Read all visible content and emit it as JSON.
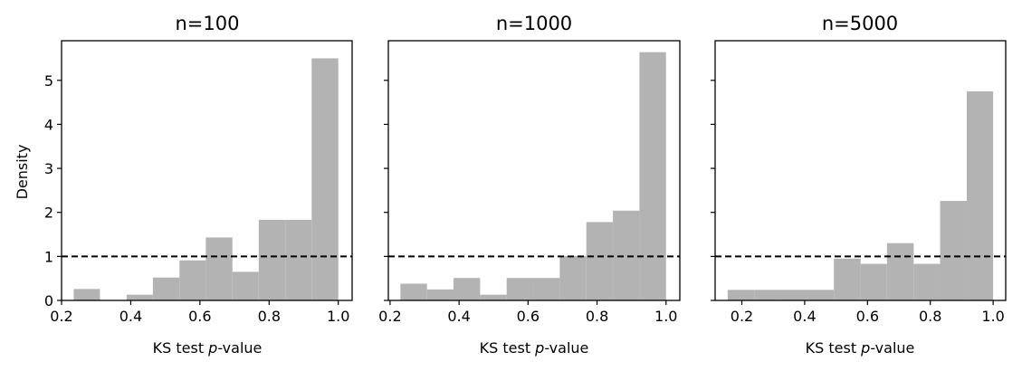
{
  "chart_data": [
    {
      "type": "histogram",
      "title": "n=100",
      "xlabel_prefix": "KS test ",
      "xlabel_italic": "p",
      "xlabel_suffix": "-value",
      "ylabel": "Density",
      "xlim": [
        0.2,
        1.04
      ],
      "ylim": [
        0,
        5.9
      ],
      "xticks": [
        "0.2",
        "0.4",
        "0.6",
        "0.8",
        "1.0"
      ],
      "yticks": [
        "0",
        "1",
        "2",
        "3",
        "4",
        "5"
      ],
      "bar_color": "#b3b3b3",
      "reference_line": {
        "y": 1.0,
        "style": "dashed",
        "color": "#000000"
      },
      "bins": [
        {
          "x0": 0.235,
          "x1": 0.311,
          "density": 0.26
        },
        {
          "x0": 0.311,
          "x1": 0.388,
          "density": 0.0
        },
        {
          "x0": 0.388,
          "x1": 0.464,
          "density": 0.13
        },
        {
          "x0": 0.464,
          "x1": 0.541,
          "density": 0.52
        },
        {
          "x0": 0.541,
          "x1": 0.617,
          "density": 0.91
        },
        {
          "x0": 0.617,
          "x1": 0.694,
          "density": 1.43
        },
        {
          "x0": 0.694,
          "x1": 0.77,
          "density": 0.65
        },
        {
          "x0": 0.77,
          "x1": 0.847,
          "density": 1.83
        },
        {
          "x0": 0.847,
          "x1": 0.923,
          "density": 1.83
        },
        {
          "x0": 0.923,
          "x1": 1.0,
          "density": 5.5
        }
      ]
    },
    {
      "type": "histogram",
      "title": "n=1000",
      "xlabel_prefix": "KS test ",
      "xlabel_italic": "p",
      "xlabel_suffix": "-value",
      "ylabel": "",
      "xlim": [
        0.195,
        1.04
      ],
      "ylim": [
        0,
        5.9
      ],
      "xticks": [
        "0.2",
        "0.4",
        "0.6",
        "0.8",
        "1.0"
      ],
      "yticks": [
        "",
        "",
        "",
        "",
        "",
        ""
      ],
      "bar_color": "#b3b3b3",
      "reference_line": {
        "y": 1.0,
        "style": "dashed",
        "color": "#000000"
      },
      "bins": [
        {
          "x0": 0.23,
          "x1": 0.307,
          "density": 0.38
        },
        {
          "x0": 0.307,
          "x1": 0.384,
          "density": 0.25
        },
        {
          "x0": 0.384,
          "x1": 0.461,
          "density": 0.51
        },
        {
          "x0": 0.461,
          "x1": 0.538,
          "density": 0.13
        },
        {
          "x0": 0.538,
          "x1": 0.615,
          "density": 0.51
        },
        {
          "x0": 0.615,
          "x1": 0.692,
          "density": 0.51
        },
        {
          "x0": 0.692,
          "x1": 0.769,
          "density": 1.01
        },
        {
          "x0": 0.769,
          "x1": 0.846,
          "density": 1.78
        },
        {
          "x0": 0.846,
          "x1": 0.923,
          "density": 2.04
        },
        {
          "x0": 0.923,
          "x1": 1.0,
          "density": 5.64
        }
      ]
    },
    {
      "type": "histogram",
      "title": "n=5000",
      "xlabel_prefix": "KS test ",
      "xlabel_italic": "p",
      "xlabel_suffix": "-value",
      "ylabel": "",
      "xlim": [
        0.115,
        1.04
      ],
      "ylim": [
        0,
        5.9
      ],
      "xticks": [
        "0.2",
        "0.4",
        "0.6",
        "0.8",
        "1.0"
      ],
      "yticks": [
        "",
        "",
        "",
        "",
        "",
        ""
      ],
      "bar_color": "#b3b3b3",
      "reference_line": {
        "y": 1.0,
        "style": "dashed",
        "color": "#000000"
      },
      "bins": [
        {
          "x0": 0.155,
          "x1": 0.24,
          "density": 0.24
        },
        {
          "x0": 0.24,
          "x1": 0.324,
          "density": 0.24
        },
        {
          "x0": 0.324,
          "x1": 0.409,
          "density": 0.24
        },
        {
          "x0": 0.409,
          "x1": 0.493,
          "density": 0.24
        },
        {
          "x0": 0.493,
          "x1": 0.578,
          "density": 0.95
        },
        {
          "x0": 0.578,
          "x1": 0.662,
          "density": 0.83
        },
        {
          "x0": 0.662,
          "x1": 0.747,
          "density": 1.3
        },
        {
          "x0": 0.747,
          "x1": 0.831,
          "density": 0.83
        },
        {
          "x0": 0.831,
          "x1": 0.916,
          "density": 2.26
        },
        {
          "x0": 0.916,
          "x1": 1.0,
          "density": 4.75
        }
      ]
    }
  ]
}
